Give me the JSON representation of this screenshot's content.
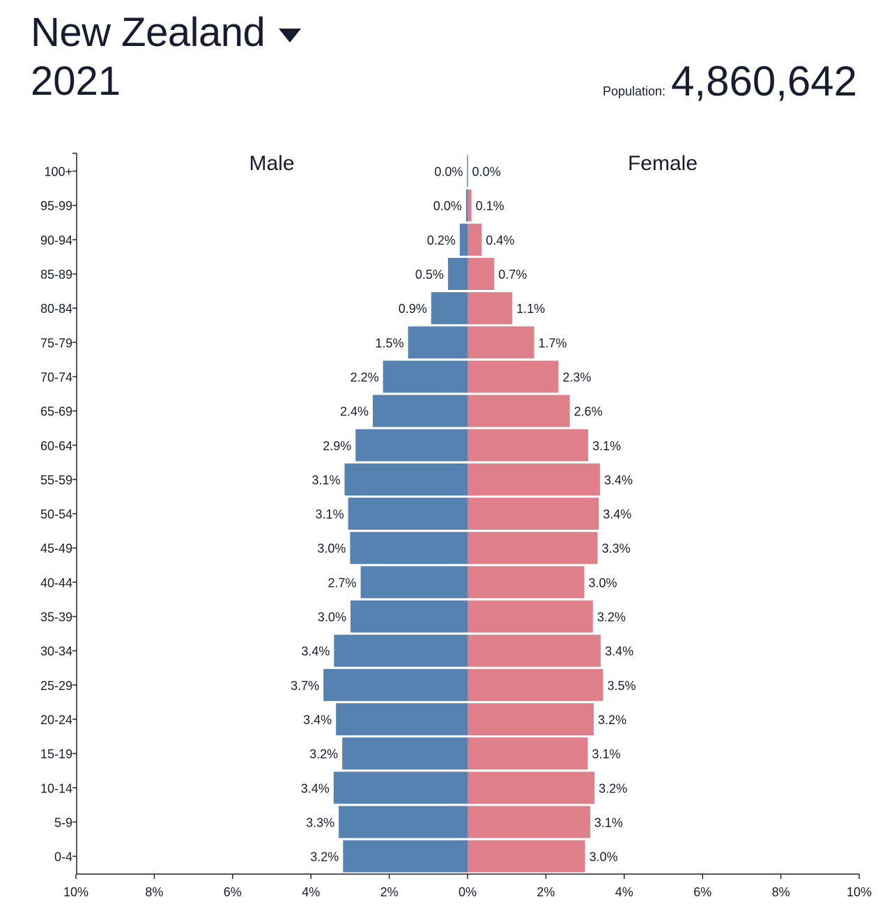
{
  "header": {
    "country": "New Zealand",
    "year": "2021",
    "population_label": "Population:",
    "population_value": "4,860,642"
  },
  "colors": {
    "male": "#5582b0",
    "female": "#df7f89",
    "text": "#171d31"
  },
  "chart_data": {
    "type": "bar",
    "orientation": "horizontal",
    "layout": "population-pyramid",
    "sides": {
      "left": "Male",
      "right": "Female"
    },
    "categories": [
      "100+",
      "95-99",
      "90-94",
      "85-89",
      "80-84",
      "75-79",
      "70-74",
      "65-69",
      "60-64",
      "55-59",
      "50-54",
      "45-49",
      "40-44",
      "35-39",
      "30-34",
      "25-29",
      "20-24",
      "15-19",
      "10-14",
      "5-9",
      "0-4"
    ],
    "series": [
      {
        "name": "Male",
        "values": [
          0.01,
          0.04,
          0.2,
          0.5,
          0.93,
          1.52,
          2.16,
          2.42,
          2.86,
          3.14,
          3.05,
          3.0,
          2.73,
          2.99,
          3.41,
          3.68,
          3.36,
          3.2,
          3.42,
          3.29,
          3.18
        ],
        "labels": [
          "0.0%",
          "0.0%",
          "0.2%",
          "0.5%",
          "0.9%",
          "1.5%",
          "2.2%",
          "2.4%",
          "2.9%",
          "3.1%",
          "3.1%",
          "3.0%",
          "2.7%",
          "3.0%",
          "3.4%",
          "3.7%",
          "3.4%",
          "3.2%",
          "3.4%",
          "3.3%",
          "3.2%"
        ]
      },
      {
        "name": "Female",
        "values": [
          0.01,
          0.1,
          0.36,
          0.68,
          1.14,
          1.7,
          2.32,
          2.61,
          3.08,
          3.38,
          3.35,
          3.32,
          2.98,
          3.2,
          3.4,
          3.46,
          3.22,
          3.07,
          3.24,
          3.13,
          3.0
        ],
        "labels": [
          "0.0%",
          "0.1%",
          "0.4%",
          "0.7%",
          "1.1%",
          "1.7%",
          "2.3%",
          "2.6%",
          "3.1%",
          "3.4%",
          "3.4%",
          "3.3%",
          "3.0%",
          "3.2%",
          "3.4%",
          "3.5%",
          "3.2%",
          "3.1%",
          "3.2%",
          "3.1%",
          "3.0%"
        ]
      }
    ],
    "x_ticks": [
      "10%",
      "8%",
      "6%",
      "4%",
      "2%",
      "0%",
      "2%",
      "4%",
      "6%",
      "8%",
      "10%"
    ],
    "xlim": [
      -10,
      10
    ],
    "title": "",
    "xlabel": "",
    "ylabel": ""
  }
}
